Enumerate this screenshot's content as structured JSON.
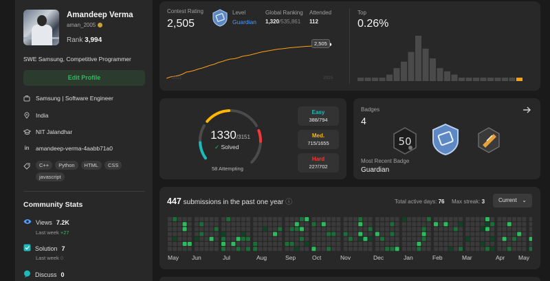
{
  "profile": {
    "name": "Amandeep Verma",
    "username": "aman_2005",
    "rank_label": "Rank",
    "rank_value": "3,994",
    "bio": "SWE Samsung, Competitive Programmer",
    "edit_button": "Edit Profile",
    "company": "Samsung | Software Engineer",
    "location": "India",
    "school": "NIT Jalandhar",
    "linkedin": "amandeep-verma-4aabb71a0",
    "skills": [
      "C++",
      "Python",
      "HTML",
      "CSS",
      "javascript"
    ]
  },
  "community": {
    "title": "Community Stats",
    "views_label": "Views",
    "views_value": "7.2K",
    "views_week_label": "Last week",
    "views_week_delta": "+27",
    "solution_label": "Solution",
    "solution_value": "7",
    "solution_week_label": "Last week",
    "solution_week_delta": "0",
    "discuss_label": "Discuss",
    "discuss_value": "0"
  },
  "contest": {
    "rating_label": "Contest Rating",
    "rating_value": "2,505",
    "level_label": "Level",
    "level_value": "Guardian",
    "global_label": "Global Ranking",
    "global_rank": "1,320",
    "global_total": "/535,861",
    "attended_label": "Attended",
    "attended_value": "112",
    "top_label": "Top",
    "top_value": "0.26%",
    "tooltip": "2,505",
    "x_start": "2021",
    "x_end": "2025"
  },
  "contest_chart": {
    "type": "line",
    "series": [
      {
        "values": [
          1520,
          1560,
          1580,
          1600,
          1640,
          1700,
          1720,
          1750,
          1790,
          1820,
          1860,
          1900,
          1930,
          1980,
          2010,
          2050,
          2080,
          2090,
          2120,
          2160,
          2180,
          2200,
          2230,
          2260,
          2290,
          2310,
          2330,
          2350,
          2370,
          2380,
          2395,
          2410,
          2420,
          2430,
          2440,
          2450,
          2455,
          2462,
          2470,
          2480,
          2490,
          2505
        ]
      }
    ],
    "histogram": [
      1,
      1,
      1,
      1,
      2,
      4,
      6,
      9,
      14,
      10,
      7,
      4,
      3,
      2,
      1,
      1,
      1,
      1,
      1,
      1,
      1,
      1,
      1
    ],
    "highlight_index": 22
  },
  "solved": {
    "solved_count": "1330",
    "solved_total": "/3151",
    "solved_label": "Solved",
    "attempting_count": "58",
    "attempting_label": "Attempting",
    "easy_label": "Easy",
    "easy_value": "388/794",
    "medium_label": "Med.",
    "medium_value": "715/1655",
    "hard_label": "Hard",
    "hard_value": "227/702",
    "easy": 388,
    "easy_total": 794,
    "medium": 715,
    "medium_total": 1655,
    "hard": 227,
    "hard_total": 702
  },
  "badges": {
    "title": "Badges",
    "count": "4",
    "recent_label": "Most Recent Badge",
    "recent_value": "Guardian",
    "icons": [
      "50-days-badge-icon",
      "guardian-badge-icon",
      "annual-badge-icon"
    ]
  },
  "submissions": {
    "count": "447",
    "label": "submissions in the past one year",
    "active_label": "Total active days:",
    "active_value": "76",
    "streak_label": "Max streak:",
    "streak_value": "3",
    "filter": "Current",
    "months": [
      "May",
      "Jun",
      "Jul",
      "Aug",
      "Sep",
      "Oct",
      "Nov",
      "Dec",
      "Jan",
      "Feb",
      "Mar",
      "Apr",
      "May"
    ]
  },
  "colors": {
    "accent_green": "#2cbb5d",
    "easy": "#1cbaba",
    "medium": "#ffb700",
    "hard": "#f63737",
    "rating_line": "#ffa116",
    "guardian_blue": "#4e9cff"
  }
}
